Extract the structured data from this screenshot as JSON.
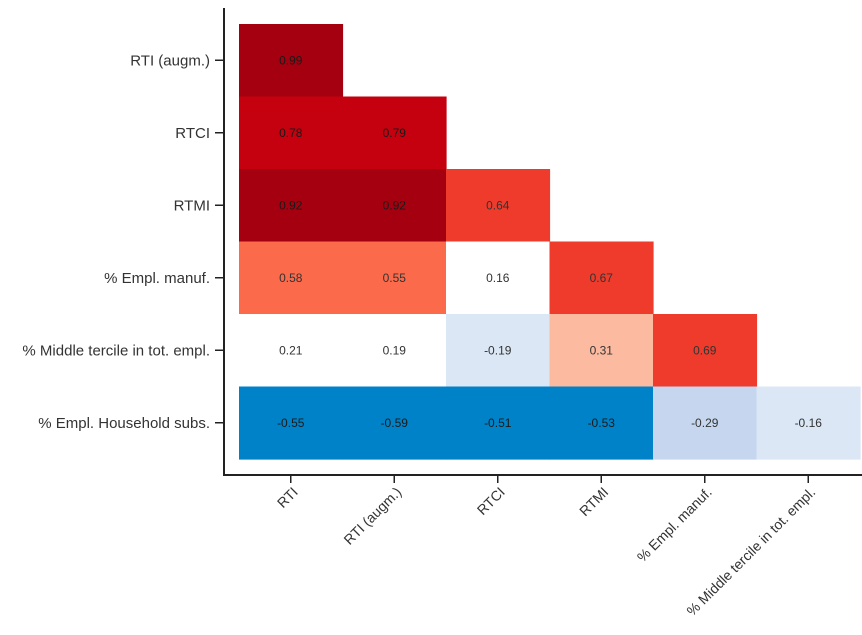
{
  "chart_data": {
    "type": "heatmap",
    "title": "",
    "xlabel": "",
    "ylabel": "",
    "x_categories": [
      "RTI",
      "RTI (augm.)",
      "RTCI",
      "RTMI",
      "% Empl. manuf.",
      "% Middle tercile in tot. empl."
    ],
    "y_categories": [
      "RTI (augm.)",
      "RTCI",
      "RTMI",
      "% Empl. manuf.",
      "% Middle tercile in tot. empl.",
      "% Empl. Household subs."
    ],
    "cells": [
      {
        "row": 0,
        "col": 0,
        "value": 0.99,
        "label": "0.99",
        "color": "#a50010"
      },
      {
        "row": 1,
        "col": 0,
        "value": 0.78,
        "label": "0.78",
        "color": "#c5000f"
      },
      {
        "row": 1,
        "col": 1,
        "value": 0.79,
        "label": "0.79",
        "color": "#c5000f"
      },
      {
        "row": 2,
        "col": 0,
        "value": 0.92,
        "label": "0.92",
        "color": "#a50010"
      },
      {
        "row": 2,
        "col": 1,
        "value": 0.92,
        "label": "0.92",
        "color": "#a50010"
      },
      {
        "row": 2,
        "col": 2,
        "value": 0.64,
        "label": "0.64",
        "color": "#ef3b2c"
      },
      {
        "row": 3,
        "col": 0,
        "value": 0.58,
        "label": "0.58",
        "color": "#fb6a4a"
      },
      {
        "row": 3,
        "col": 1,
        "value": 0.55,
        "label": "0.55",
        "color": "#fb6a4a"
      },
      {
        "row": 3,
        "col": 2,
        "value": 0.16,
        "label": "0.16",
        "color": "#ffffff"
      },
      {
        "row": 3,
        "col": 3,
        "value": 0.67,
        "label": "0.67",
        "color": "#ef3b2c"
      },
      {
        "row": 4,
        "col": 0,
        "value": 0.21,
        "label": "0.21",
        "color": "#ffffff"
      },
      {
        "row": 4,
        "col": 1,
        "value": 0.19,
        "label": "0.19",
        "color": "#ffffff"
      },
      {
        "row": 4,
        "col": 2,
        "value": -0.19,
        "label": "-0.19",
        "color": "#dbe7f5"
      },
      {
        "row": 4,
        "col": 3,
        "value": 0.31,
        "label": "0.31",
        "color": "#fcbba1"
      },
      {
        "row": 4,
        "col": 4,
        "value": 0.69,
        "label": "0.69",
        "color": "#ef3b2c"
      },
      {
        "row": 5,
        "col": 0,
        "value": -0.55,
        "label": "-0.55",
        "color": "#0082c8"
      },
      {
        "row": 5,
        "col": 1,
        "value": -0.59,
        "label": "-0.59",
        "color": "#0082c8"
      },
      {
        "row": 5,
        "col": 2,
        "value": -0.51,
        "label": "-0.51",
        "color": "#0082c8"
      },
      {
        "row": 5,
        "col": 3,
        "value": -0.53,
        "label": "-0.53",
        "color": "#0082c8"
      },
      {
        "row": 5,
        "col": 4,
        "value": -0.29,
        "label": "-0.29",
        "color": "#c6d6ee"
      },
      {
        "row": 5,
        "col": 5,
        "value": -0.16,
        "label": "-0.16",
        "color": "#dbe7f5"
      }
    ],
    "grid": false,
    "legend": "none",
    "label_color_dark": "#333333"
  }
}
